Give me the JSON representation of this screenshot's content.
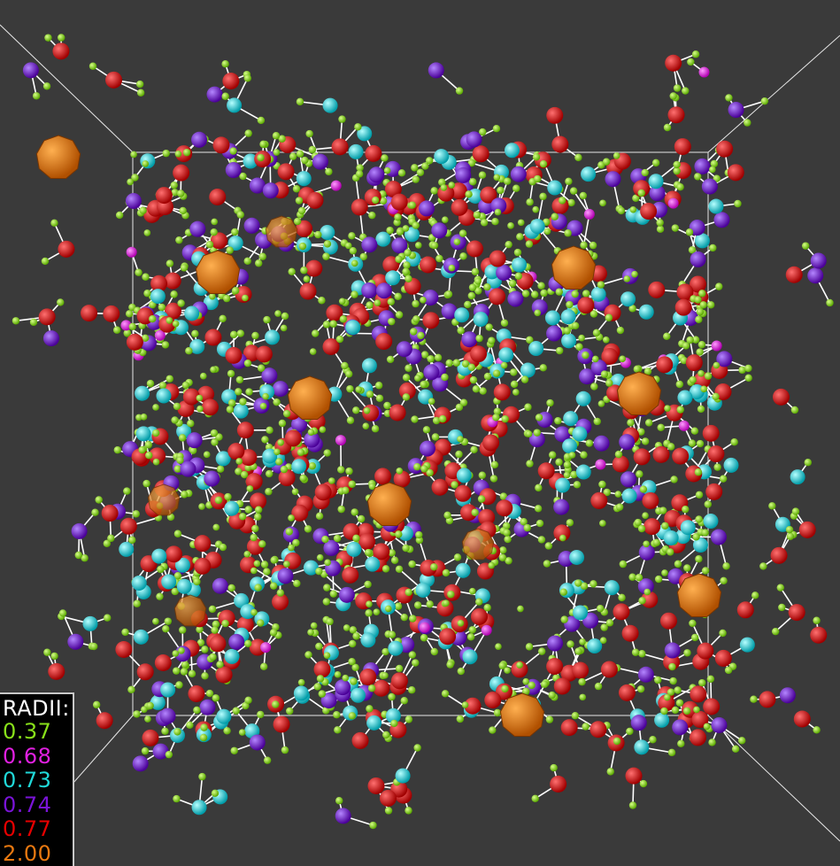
{
  "legend": {
    "title": "RADII:",
    "entries": [
      {
        "label": "0.37",
        "color": "#88e01a"
      },
      {
        "label": "0.68",
        "color": "#e020e0"
      },
      {
        "label": "0.73",
        "color": "#20d8d8"
      },
      {
        "label": "0.74",
        "color": "#7a14d8"
      },
      {
        "label": "0.77",
        "color": "#e60000"
      },
      {
        "label": "2.00",
        "color": "#e87810"
      }
    ]
  },
  "colors": {
    "background": "#3a3a3a",
    "box_edges": "#e0e0e0",
    "bonds": "#ffffff"
  }
}
